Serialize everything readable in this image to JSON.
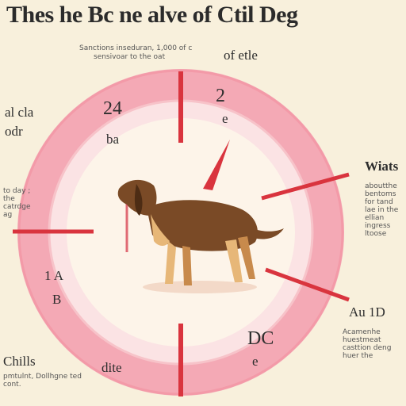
{
  "title": "Thes he Bc ne alve of Ctil Deg",
  "labels": {
    "top_small_1": "Sanctions inseduran, 1,000 of c",
    "top_small_2": "sensivoar to the oat",
    "top_right": "of etle",
    "left_mid_1": "al cla",
    "left_mid_2": "odr",
    "left_small": "to day ; the catrdge ag",
    "quad_top_left": "24",
    "quad_top_left_sub": "ba",
    "quad_top_right": "2",
    "quad_top_right_sub": "e",
    "right_head": "Wiats",
    "right_small": "aboutthe bentoms for tand lae in the ellian ingress ltoose",
    "quad_bot_left": "1 A",
    "quad_bot_left_sub": "B",
    "right_bottom_head": "Au 1D",
    "right_bottom_small": "Acamenhe huestmeat casttion deng huer the",
    "quad_bot_right": "DC",
    "quad_bot_right_sub": "e",
    "bottom_left_head": "Chills",
    "bottom_left_small": "pmtulnt, Dollhgne ted cont.",
    "bottom_mid": "dite"
  },
  "colors": {
    "background": "#f8f0dc",
    "ring": "#f4a9b5",
    "ring_inner": "#fbd6da",
    "marker": "#d9343e",
    "dog_body": "#7a4a26",
    "dog_light": "#e7b778"
  }
}
